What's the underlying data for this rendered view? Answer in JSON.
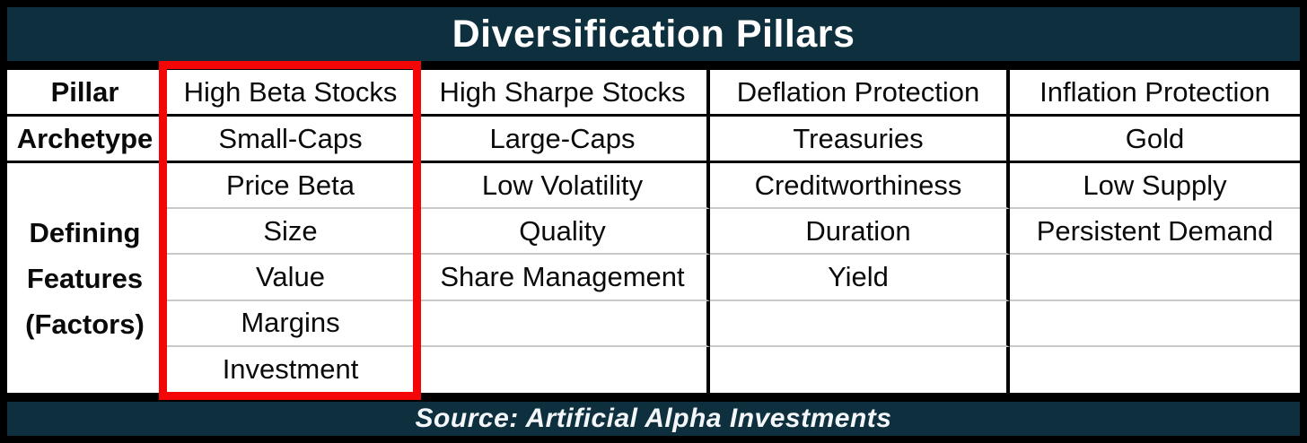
{
  "title": "Diversification Pillars",
  "source": "Source: Artificial Alpha Investments",
  "colors": {
    "banner_navy": "#0e2f3e",
    "highlight_red": "#f40606",
    "grid_black": "#000000",
    "factor_separator_gray": "#c9c9c9",
    "cell_white": "#ffffff",
    "title_text": "#ffffff",
    "body_text": "#0a0a0a"
  },
  "chart_data": {
    "type": "table",
    "title": "Diversification Pillars",
    "source": "Source: Artificial Alpha Investments",
    "row_headers": {
      "pillar": "Pillar",
      "archetype": "Archetype",
      "features": "Defining\nFeatures\n(Factors)"
    },
    "columns": [
      {
        "pillar": "High Beta Stocks",
        "archetype": "Small-Caps",
        "factors": [
          "Price Beta",
          "Size",
          "Value",
          "Margins",
          "Investment"
        ],
        "highlighted": true
      },
      {
        "pillar": "High Sharpe Stocks",
        "archetype": "Large-Caps",
        "factors": [
          "Low Volatility",
          "Quality",
          "Share Management",
          "",
          ""
        ],
        "highlighted": false
      },
      {
        "pillar": "Deflation Protection",
        "archetype": "Treasuries",
        "factors": [
          "Creditworthiness",
          "Duration",
          "Yield",
          "",
          ""
        ],
        "highlighted": false
      },
      {
        "pillar": "Inflation Protection",
        "archetype": "Gold",
        "factors": [
          "Low Supply",
          "Persistent Demand",
          "",
          "",
          ""
        ],
        "highlighted": false
      }
    ],
    "layout_hints": {
      "highlight": "red outline around High Beta Stocks column",
      "features_cell_spans_rows": 5,
      "grid_lines": "black between header rows and columns; light gray between factor rows"
    }
  }
}
